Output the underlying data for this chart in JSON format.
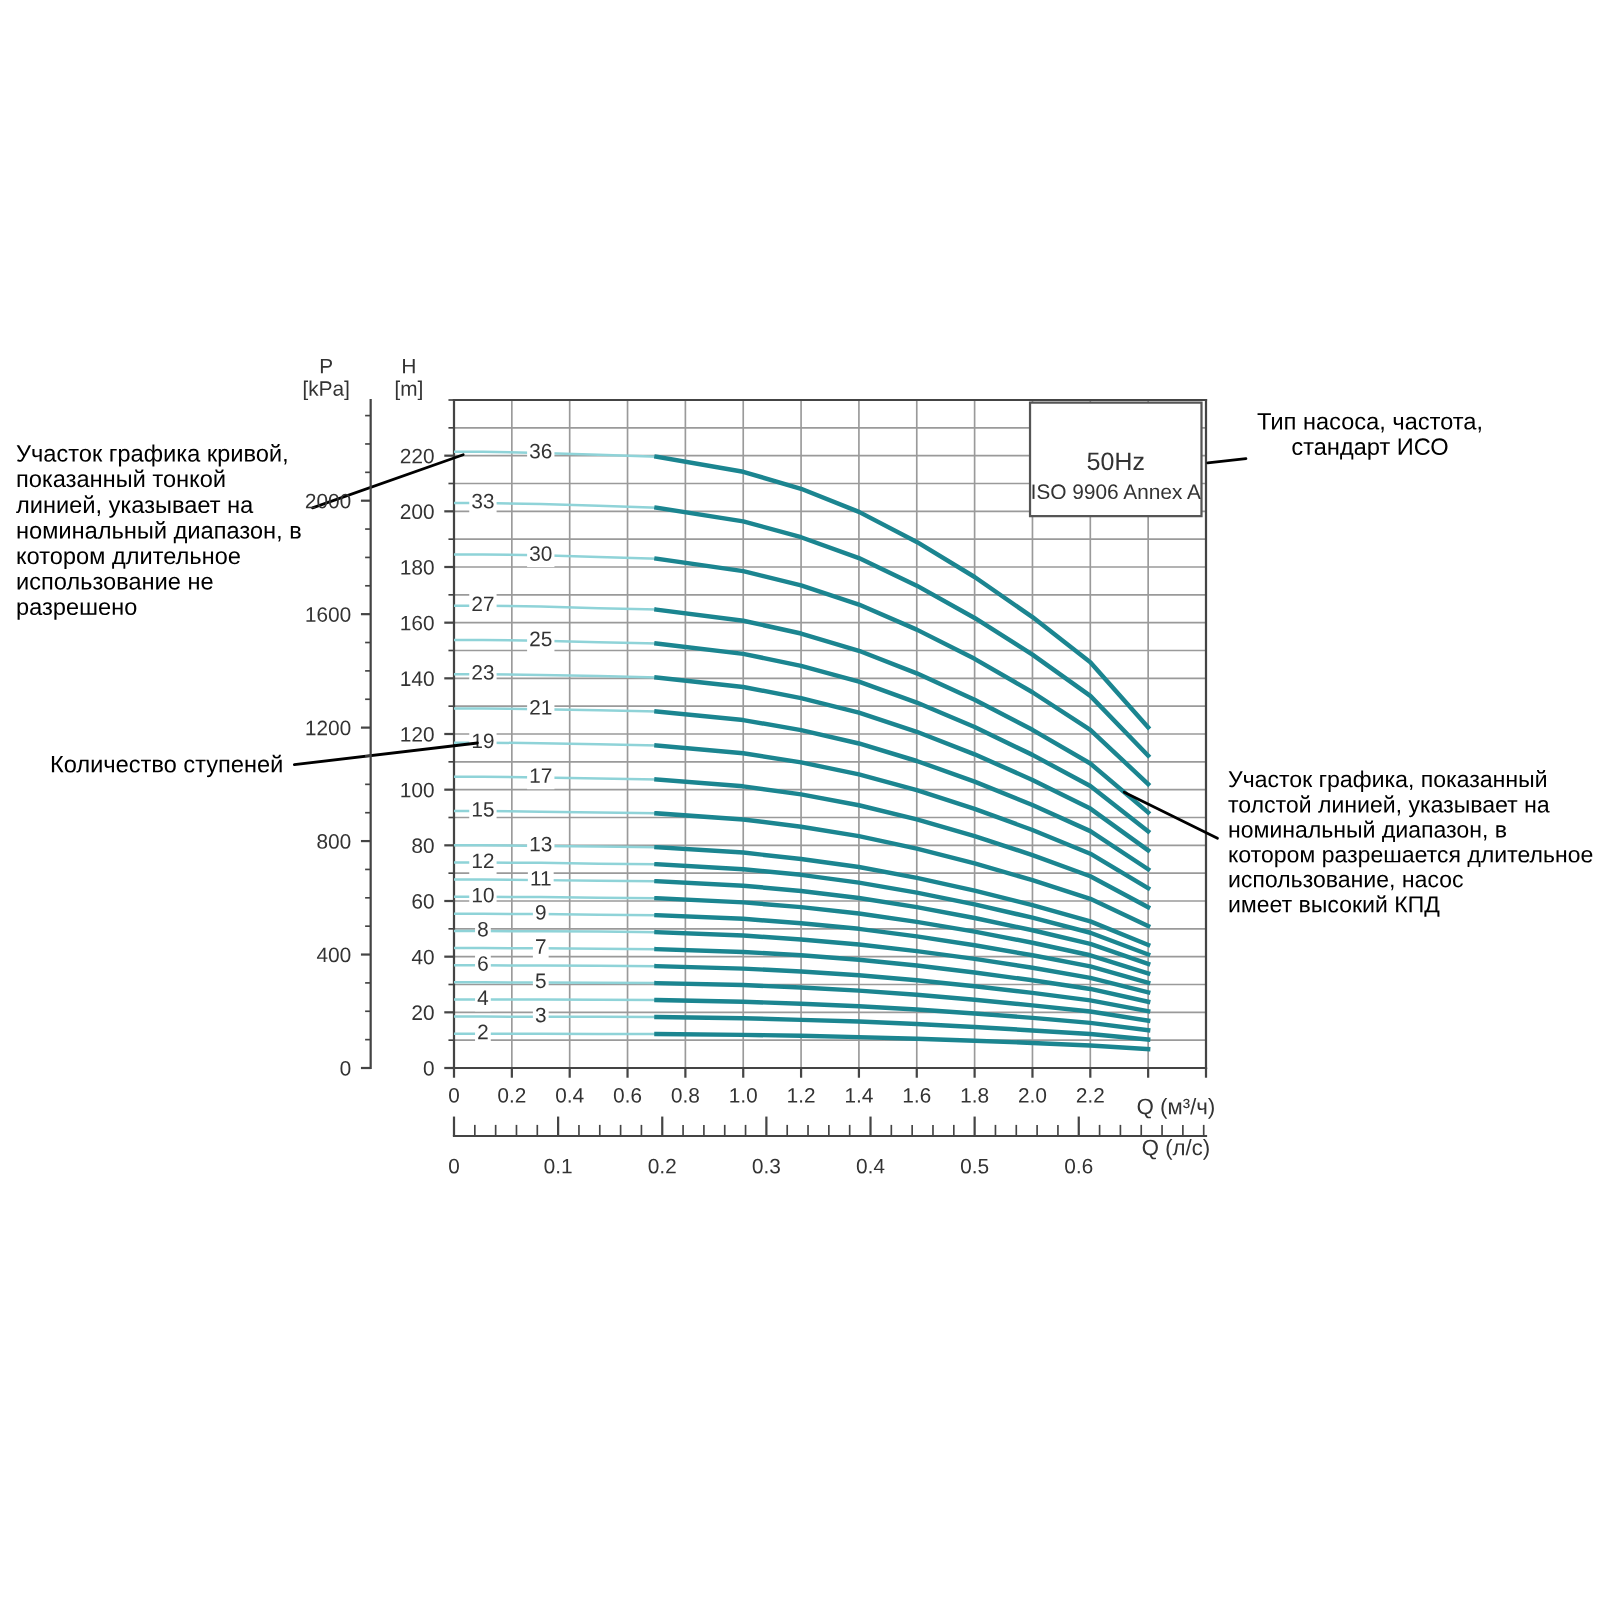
{
  "chart_data": {
    "type": "line",
    "xlabel": "Q (м³/ч)",
    "ylabel": "H\n[m]",
    "y2label": "P\n[kPa]",
    "x2label": "Q (л/с)",
    "xlim": [
      0,
      2.6
    ],
    "xticks": [
      0,
      0.2,
      0.4,
      0.6,
      0.8,
      {
        "value": 1.0,
        "label": "1.0"
      },
      1.2,
      1.4,
      1.6,
      1.8,
      {
        "value": 2.0,
        "label": "2.0"
      },
      2.2,
      {
        "value": 2.4,
        "label": null
      },
      {
        "value": 2.6,
        "label": null
      }
    ],
    "ylim": [
      0,
      240
    ],
    "yticks": [
      0,
      20,
      40,
      60,
      80,
      100,
      120,
      140,
      160,
      180,
      200,
      220
    ],
    "y2lim": [
      0,
      2355
    ],
    "y2ticks": [
      0,
      400,
      800,
      1200,
      1600,
      2000
    ],
    "x2lim": [
      0,
      0.7222
    ],
    "x2ticks": [
      0,
      0.1,
      0.2,
      0.3,
      0.4,
      0.5,
      0.6
    ],
    "grid": true,
    "legend": false,
    "series": [
      {
        "name": "36",
        "color": "#8fd3d8",
        "x": [
          0,
          0.1,
          0.3,
          0.5,
          0.7
        ],
        "values": [
          221.4,
          221.4,
          221.0,
          220.3,
          219.6
        ]
      },
      {
        "color": "#1b8590",
        "x": [
          0.7,
          1.0,
          1.2,
          1.4,
          1.6,
          1.8,
          2.0,
          2.2,
          2.4
        ],
        "values": [
          219.6,
          214.2,
          208.1,
          199.8,
          189.0,
          176.4,
          162.0,
          145.8,
          122.4
        ]
      },
      {
        "name": "33",
        "color": "#8fd3d8",
        "x": [
          0,
          0.1,
          0.3,
          0.5,
          0.7
        ],
        "values": [
          203.0,
          203.0,
          202.6,
          202.0,
          201.3
        ]
      },
      {
        "color": "#1b8590",
        "x": [
          0.7,
          1.0,
          1.2,
          1.4,
          1.6,
          1.8,
          2.0,
          2.2,
          2.4
        ],
        "values": [
          201.3,
          196.4,
          190.7,
          183.2,
          173.3,
          161.7,
          148.5,
          133.7,
          112.2
        ]
      },
      {
        "name": "30",
        "color": "#8fd3d8",
        "x": [
          0,
          0.1,
          0.3,
          0.5,
          0.7
        ],
        "values": [
          184.5,
          184.5,
          184.2,
          183.6,
          183.0
        ]
      },
      {
        "color": "#1b8590",
        "x": [
          0.7,
          1.0,
          1.2,
          1.4,
          1.6,
          1.8,
          2.0,
          2.2,
          2.4
        ],
        "values": [
          183.0,
          178.5,
          173.4,
          166.5,
          157.5,
          147.0,
          135.0,
          121.5,
          102.0
        ]
      },
      {
        "name": "27",
        "color": "#8fd3d8",
        "x": [
          0,
          0.1,
          0.3,
          0.5,
          0.7
        ],
        "values": [
          166.1,
          166.1,
          165.8,
          165.2,
          164.7
        ]
      },
      {
        "color": "#1b8590",
        "x": [
          0.7,
          1.0,
          1.2,
          1.4,
          1.6,
          1.8,
          2.0,
          2.2,
          2.4
        ],
        "values": [
          164.7,
          160.7,
          156.1,
          149.9,
          141.8,
          132.3,
          121.5,
          109.4,
          91.8
        ]
      },
      {
        "name": "25",
        "color": "#8fd3d8",
        "x": [
          0,
          0.1,
          0.3,
          0.5,
          0.7
        ],
        "values": [
          153.8,
          153.8,
          153.5,
          153.0,
          152.5
        ]
      },
      {
        "color": "#1b8590",
        "x": [
          0.7,
          1.0,
          1.2,
          1.4,
          1.6,
          1.8,
          2.0,
          2.2,
          2.4
        ],
        "values": [
          152.5,
          148.8,
          144.5,
          138.8,
          131.3,
          122.5,
          112.5,
          101.3,
          85.0
        ]
      },
      {
        "name": "23",
        "color": "#8fd3d8",
        "x": [
          0,
          0.1,
          0.3,
          0.5,
          0.7
        ],
        "values": [
          141.5,
          141.5,
          141.2,
          140.8,
          140.3
        ]
      },
      {
        "color": "#1b8590",
        "x": [
          0.7,
          1.0,
          1.2,
          1.4,
          1.6,
          1.8,
          2.0,
          2.2,
          2.4
        ],
        "values": [
          140.3,
          136.9,
          132.9,
          127.7,
          120.8,
          112.7,
          103.5,
          93.2,
          78.2
        ]
      },
      {
        "name": "21",
        "color": "#8fd3d8",
        "x": [
          0,
          0.1,
          0.3,
          0.5,
          0.7
        ],
        "values": [
          129.2,
          129.2,
          128.9,
          128.5,
          128.1
        ]
      },
      {
        "color": "#1b8590",
        "x": [
          0.7,
          1.0,
          1.2,
          1.4,
          1.6,
          1.8,
          2.0,
          2.2,
          2.4
        ],
        "values": [
          128.1,
          125.0,
          121.4,
          116.6,
          110.3,
          102.9,
          94.5,
          85.1,
          71.4
        ]
      },
      {
        "name": "19",
        "color": "#8fd3d8",
        "x": [
          0,
          0.1,
          0.3,
          0.5,
          0.7
        ],
        "values": [
          116.9,
          116.9,
          116.7,
          116.3,
          115.9
        ]
      },
      {
        "color": "#1b8590",
        "x": [
          0.7,
          1.0,
          1.2,
          1.4,
          1.6,
          1.8,
          2.0,
          2.2,
          2.4
        ],
        "values": [
          115.9,
          113.1,
          109.8,
          105.5,
          99.8,
          93.1,
          85.5,
          77.0,
          64.6
        ]
      },
      {
        "name": "17",
        "color": "#8fd3d8",
        "x": [
          0,
          0.1,
          0.3,
          0.5,
          0.7
        ],
        "values": [
          104.6,
          104.6,
          104.4,
          104.0,
          103.7
        ]
      },
      {
        "color": "#1b8590",
        "x": [
          0.7,
          1.0,
          1.2,
          1.4,
          1.6,
          1.8,
          2.0,
          2.2,
          2.4
        ],
        "values": [
          103.7,
          101.2,
          98.3,
          94.4,
          89.3,
          83.3,
          76.5,
          68.9,
          57.8
        ]
      },
      {
        "name": "15",
        "color": "#8fd3d8",
        "x": [
          0,
          0.1,
          0.3,
          0.5,
          0.7
        ],
        "values": [
          92.3,
          92.3,
          92.1,
          91.8,
          91.5
        ]
      },
      {
        "color": "#1b8590",
        "x": [
          0.7,
          1.0,
          1.2,
          1.4,
          1.6,
          1.8,
          2.0,
          2.2,
          2.4
        ],
        "values": [
          91.5,
          89.3,
          86.7,
          83.3,
          78.8,
          73.5,
          67.5,
          60.8,
          51.0
        ]
      },
      {
        "name": "13",
        "color": "#8fd3d8",
        "x": [
          0,
          0.1,
          0.3,
          0.5,
          0.7
        ],
        "values": [
          80.0,
          80.0,
          79.8,
          79.6,
          79.3
        ]
      },
      {
        "color": "#1b8590",
        "x": [
          0.7,
          1.0,
          1.2,
          1.4,
          1.6,
          1.8,
          2.0,
          2.2,
          2.4
        ],
        "values": [
          79.3,
          77.4,
          75.1,
          72.2,
          68.3,
          63.7,
          58.5,
          52.7,
          44.2
        ]
      },
      {
        "name": "12",
        "color": "#8fd3d8",
        "x": [
          0,
          0.1,
          0.3,
          0.5,
          0.7
        ],
        "values": [
          73.8,
          73.8,
          73.7,
          73.4,
          73.2
        ]
      },
      {
        "color": "#1b8590",
        "x": [
          0.7,
          1.0,
          1.2,
          1.4,
          1.6,
          1.8,
          2.0,
          2.2,
          2.4
        ],
        "values": [
          73.2,
          71.4,
          69.4,
          66.6,
          63.0,
          58.8,
          54.0,
          48.6,
          40.8
        ]
      },
      {
        "name": "11",
        "color": "#8fd3d8",
        "x": [
          0,
          0.1,
          0.3,
          0.5,
          0.7
        ],
        "values": [
          67.7,
          67.7,
          67.5,
          67.3,
          67.1
        ]
      },
      {
        "color": "#1b8590",
        "x": [
          0.7,
          1.0,
          1.2,
          1.4,
          1.6,
          1.8,
          2.0,
          2.2,
          2.4
        ],
        "values": [
          67.1,
          65.5,
          63.6,
          61.1,
          57.8,
          53.9,
          49.5,
          44.6,
          37.4
        ]
      },
      {
        "name": "10",
        "color": "#8fd3d8",
        "x": [
          0,
          0.1,
          0.3,
          0.5,
          0.7
        ],
        "values": [
          61.5,
          61.5,
          61.4,
          61.2,
          61.0
        ]
      },
      {
        "color": "#1b8590",
        "x": [
          0.7,
          1.0,
          1.2,
          1.4,
          1.6,
          1.8,
          2.0,
          2.2,
          2.4
        ],
        "values": [
          61.0,
          59.5,
          57.8,
          55.5,
          52.5,
          49.0,
          45.0,
          40.5,
          34.0
        ]
      },
      {
        "name": "9",
        "color": "#8fd3d8",
        "x": [
          0,
          0.1,
          0.3,
          0.5,
          0.7
        ],
        "values": [
          55.4,
          55.4,
          55.3,
          55.1,
          54.9
        ]
      },
      {
        "color": "#1b8590",
        "x": [
          0.7,
          1.0,
          1.2,
          1.4,
          1.6,
          1.8,
          2.0,
          2.2,
          2.4
        ],
        "values": [
          54.9,
          53.6,
          52.0,
          50.0,
          47.3,
          44.1,
          40.5,
          36.5,
          30.6
        ]
      },
      {
        "name": "8",
        "color": "#8fd3d8",
        "x": [
          0,
          0.1,
          0.3,
          0.5,
          0.7
        ],
        "values": [
          49.2,
          49.2,
          49.1,
          49.0,
          48.8
        ]
      },
      {
        "color": "#1b8590",
        "x": [
          0.7,
          1.0,
          1.2,
          1.4,
          1.6,
          1.8,
          2.0,
          2.2,
          2.4
        ],
        "values": [
          48.8,
          47.6,
          46.2,
          44.4,
          42.0,
          39.2,
          36.0,
          32.4,
          27.2
        ]
      },
      {
        "name": "7",
        "color": "#8fd3d8",
        "x": [
          0,
          0.1,
          0.3,
          0.5,
          0.7
        ],
        "values": [
          43.1,
          43.1,
          43.0,
          42.8,
          42.7
        ]
      },
      {
        "color": "#1b8590",
        "x": [
          0.7,
          1.0,
          1.2,
          1.4,
          1.6,
          1.8,
          2.0,
          2.2,
          2.4
        ],
        "values": [
          42.7,
          41.7,
          40.5,
          38.9,
          36.8,
          34.3,
          31.5,
          28.4,
          23.8
        ]
      },
      {
        "name": "6",
        "color": "#8fd3d8",
        "x": [
          0,
          0.1,
          0.3,
          0.5,
          0.7
        ],
        "values": [
          36.9,
          36.9,
          36.8,
          36.7,
          36.6
        ]
      },
      {
        "color": "#1b8590",
        "x": [
          0.7,
          1.0,
          1.2,
          1.4,
          1.6,
          1.8,
          2.0,
          2.2,
          2.4
        ],
        "values": [
          36.6,
          35.7,
          34.7,
          33.3,
          31.5,
          29.4,
          27.0,
          24.3,
          20.4
        ]
      },
      {
        "name": "5",
        "color": "#8fd3d8",
        "x": [
          0,
          0.1,
          0.3,
          0.5,
          0.7
        ],
        "values": [
          30.8,
          30.8,
          30.7,
          30.6,
          30.5
        ]
      },
      {
        "color": "#1b8590",
        "x": [
          0.7,
          1.0,
          1.2,
          1.4,
          1.6,
          1.8,
          2.0,
          2.2,
          2.4
        ],
        "values": [
          30.5,
          29.8,
          28.9,
          27.8,
          26.3,
          24.5,
          22.5,
          20.3,
          17.0
        ]
      },
      {
        "name": "4",
        "color": "#8fd3d8",
        "x": [
          0,
          0.1,
          0.3,
          0.5,
          0.7
        ],
        "values": [
          24.6,
          24.6,
          24.6,
          24.5,
          24.4
        ]
      },
      {
        "color": "#1b8590",
        "x": [
          0.7,
          1.0,
          1.2,
          1.4,
          1.6,
          1.8,
          2.0,
          2.2,
          2.4
        ],
        "values": [
          24.4,
          23.8,
          23.1,
          22.2,
          21.0,
          19.6,
          18.0,
          16.2,
          13.6
        ]
      },
      {
        "name": "3",
        "color": "#8fd3d8",
        "x": [
          0,
          0.1,
          0.3,
          0.5,
          0.7
        ],
        "values": [
          18.5,
          18.5,
          18.4,
          18.4,
          18.3
        ]
      },
      {
        "color": "#1b8590",
        "x": [
          0.7,
          1.0,
          1.2,
          1.4,
          1.6,
          1.8,
          2.0,
          2.2,
          2.4
        ],
        "values": [
          18.3,
          17.9,
          17.3,
          16.7,
          15.8,
          14.7,
          13.5,
          12.2,
          10.2
        ]
      },
      {
        "name": "2",
        "color": "#8fd3d8",
        "x": [
          0,
          0.1,
          0.3,
          0.5,
          0.7
        ],
        "values": [
          12.3,
          12.3,
          12.3,
          12.2,
          12.2
        ]
      },
      {
        "color": "#1b8590",
        "x": [
          0.7,
          1.0,
          1.2,
          1.4,
          1.6,
          1.8,
          2.0,
          2.2,
          2.4
        ],
        "values": [
          12.2,
          11.9,
          11.6,
          11.1,
          10.5,
          9.8,
          9.0,
          8.1,
          6.8
        ]
      }
    ],
    "annotations": [
      "50Hz",
      "ISO 9906 Annex A",
      "Тип насоса, частота,\nстандарт ИСО",
      {
        "text": "Участок графика кривой,\nпоказанный тонкой\nлинией, указывает на\nноминальный диапазон, в\nкотором длительное\nиспользование не\nразрешено",
        "x": 0.05,
        "y": 221
      },
      {
        "text": "Количество ступеней",
        "x": 0.1,
        "y": 117
      },
      {
        "text": "Участок графика, показанный\nтолстой линией, указывает на\nноминальный диапазон, в\nкотором разрешается длительное\nиспользование, насос\nимеет высокий КПД",
        "x": 2.3,
        "y": 100
      }
    ]
  }
}
